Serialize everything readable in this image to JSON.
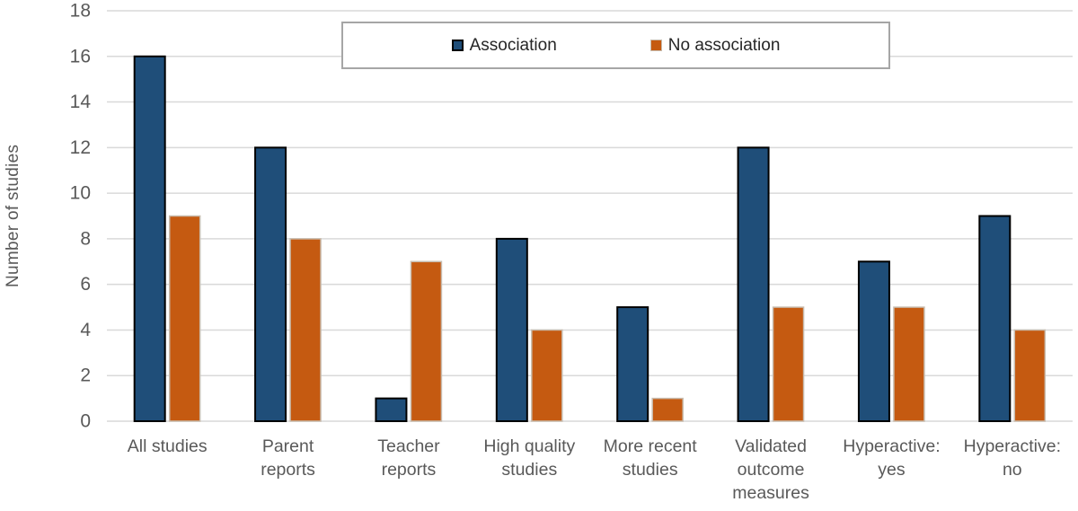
{
  "chart_data": {
    "type": "bar",
    "title": "",
    "xlabel": "",
    "ylabel": "Number of studies",
    "ylim": [
      0,
      18
    ],
    "yticks": [
      0,
      2,
      4,
      6,
      8,
      10,
      12,
      14,
      16,
      18
    ],
    "grid": true,
    "legend_position": "top-center",
    "categories": [
      "All studies",
      "Parent reports",
      "Teacher reports",
      "High quality studies",
      "More recent studies",
      "Validated outcome measures",
      "Hyperactive: yes",
      "Hyperactive: no"
    ],
    "categories_wrapped": [
      [
        "All studies"
      ],
      [
        "Parent",
        "reports"
      ],
      [
        "Teacher",
        "reports"
      ],
      [
        "High quality",
        "studies"
      ],
      [
        "More recent",
        "studies"
      ],
      [
        "Validated",
        "outcome",
        "measures"
      ],
      [
        "Hyperactive:",
        "yes"
      ],
      [
        "Hyperactive:",
        "no"
      ]
    ],
    "series": [
      {
        "name": "Association",
        "color": "#1F4E79",
        "border_color": "#000000",
        "values": [
          16,
          12,
          1,
          8,
          5,
          12,
          7,
          9
        ]
      },
      {
        "name": "No association",
        "color": "#C55A11",
        "border_color": "#C8BCAE",
        "values": [
          9,
          8,
          7,
          4,
          1,
          5,
          5,
          4
        ]
      }
    ],
    "colors": {
      "gridline": "#D9D9D9",
      "axis_text": "#595959",
      "legend_border": "#A6A6A6",
      "legend_text": "#262626",
      "background": "#FFFFFF"
    }
  }
}
